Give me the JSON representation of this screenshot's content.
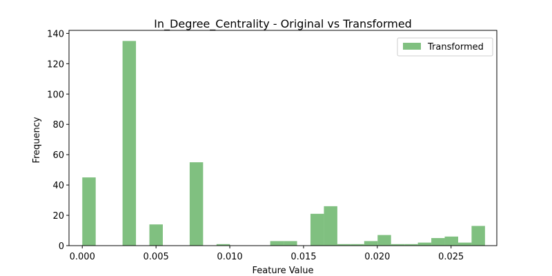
{
  "chart_data": {
    "type": "bar",
    "title": "In_Degree_Centrality - Original vs Transformed",
    "xlabel": "Feature Value",
    "ylabel": "Frequency",
    "xlim": [
      -0.0009,
      0.0281
    ],
    "ylim": [
      0,
      142
    ],
    "xticks": [
      0.0,
      0.005,
      0.01,
      0.015,
      0.02,
      0.025
    ],
    "xtick_labels": [
      "0.000",
      "0.005",
      "0.010",
      "0.015",
      "0.020",
      "0.025"
    ],
    "yticks": [
      0,
      20,
      40,
      60,
      80,
      100,
      120,
      140
    ],
    "ytick_labels": [
      "0",
      "20",
      "40",
      "60",
      "80",
      "100",
      "120",
      "140"
    ],
    "bin_start": 0.0,
    "bin_width": 0.00091,
    "legend_position": "top-right",
    "grid": false,
    "series": [
      {
        "name": "Transformed",
        "color": "#80c080",
        "values": [
          45,
          0,
          0,
          135,
          0,
          14,
          0,
          0,
          55,
          0,
          1,
          0,
          0,
          0,
          3,
          3,
          0,
          21,
          26,
          1,
          1,
          3,
          7,
          1,
          1,
          2,
          5,
          6,
          2,
          13
        ]
      }
    ]
  }
}
